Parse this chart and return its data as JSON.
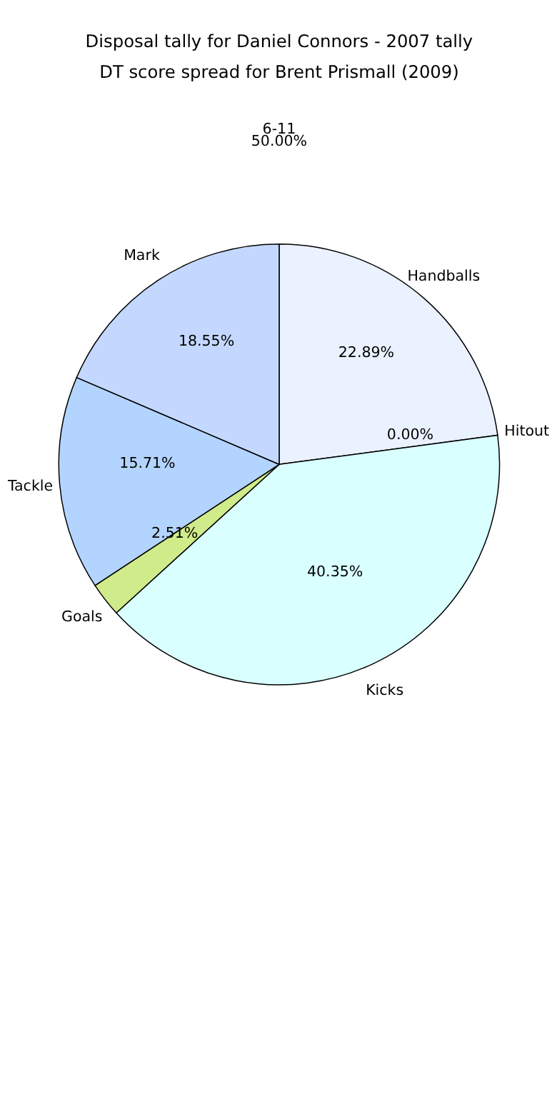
{
  "chart_data": {
    "type": "pie",
    "title": "Disposal tally for Daniel Connors - 2007 tally",
    "subtitle": "DT score spread for Brent Prismall (2009)",
    "categories": [
      "Handballs",
      "Hitout",
      "Kicks",
      "Goals",
      "Tackle",
      "Mark"
    ],
    "values": [
      22.89,
      0.0,
      40.35,
      2.51,
      15.71,
      18.55
    ],
    "value_labels": [
      "22.89%",
      "0.00%",
      "40.35%",
      "2.51%",
      "15.71%",
      "18.55%"
    ],
    "colors": [
      "#eaf1ff",
      "#ffffff",
      "#d9ffff",
      "#d0eb8a",
      "#b3d4ff",
      "#c4d8ff"
    ],
    "annotations": [
      "6-11",
      "50.00%"
    ],
    "legend": false
  }
}
